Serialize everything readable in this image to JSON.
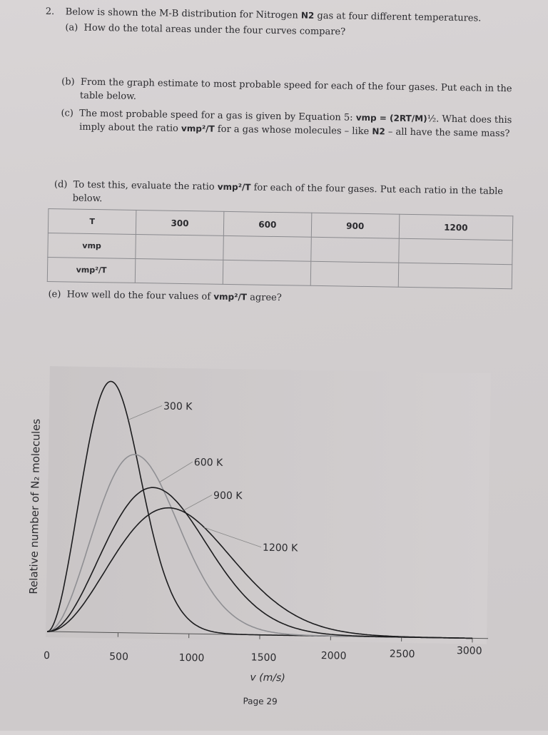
{
  "question": {
    "number": "2.",
    "intro_a": "Below is shown the M-B distribution for Nitrogen ",
    "intro_b": "N2",
    "intro_c": " gas at four different temperatures.",
    "a_label": "(a)",
    "a_text": "How do the total areas under the four curves compare?",
    "b_label": "(b)",
    "b_text_1": "From the graph estimate to most probable speed for each of the four gases.  Put each in the",
    "b_text_2": "table below.",
    "c_label": "(c)",
    "c_text_1a": "The most probable speed for a gas is given by Equation 5: ",
    "c_vmp": "vmp",
    "c_eq": " = (2RT/M)",
    "c_half": "½",
    "c_text_1b": ".  What does this",
    "c_text_2a": "imply about the ratio ",
    "c_ratio": "vmp²/T",
    "c_text_2b": " for a gas whose molecules – like ",
    "c_n2": "N2",
    "c_text_2c": " – all have the same mass?",
    "d_label": "(d)",
    "d_text_1a": "To test this, evaluate the ratio ",
    "d_ratio": "vmp²/T",
    "d_text_1b": " for each of the four gases.  Put each ratio in the table",
    "d_text_2": "below.",
    "e_label": "(e)",
    "e_text_a": "How well do the four values of ",
    "e_ratio": "vmp²/T",
    "e_text_b": " agree?"
  },
  "table": {
    "header": [
      "T",
      "300",
      "600",
      "900",
      "1200"
    ],
    "row_labels": [
      "vmp",
      "vmp²/T"
    ]
  },
  "chart_data": {
    "type": "line",
    "ylabel": "Relative number of N₂ molecules",
    "xlabel": "v (m/s)",
    "xlim": [
      0,
      3000
    ],
    "x_ticks": [
      "0",
      "500",
      "1000",
      "1500",
      "2000",
      "2500",
      "3000"
    ],
    "series": [
      {
        "name": "300 K",
        "most_probable_speed": 422,
        "peak": 1.0,
        "color": "#1c1c1e"
      },
      {
        "name": "600 K",
        "most_probable_speed": 597,
        "peak": 0.71,
        "color": "#8f8f93"
      },
      {
        "name": "900 K",
        "most_probable_speed": 731,
        "peak": 0.58,
        "color": "#1c1c1e"
      },
      {
        "name": "1200 K",
        "most_probable_speed": 844,
        "peak": 0.5,
        "color": "#1c1c1e"
      }
    ]
  },
  "footer": {
    "page": "Page 29"
  }
}
